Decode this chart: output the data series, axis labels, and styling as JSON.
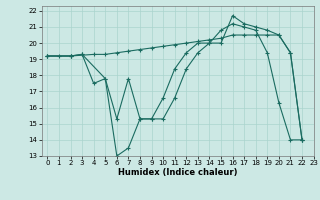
{
  "xlabel": "Humidex (Indice chaleur)",
  "background_color": "#cce8e4",
  "grid_color": "#aad4ce",
  "line_color": "#1a6b60",
  "xlim": [
    -0.5,
    23
  ],
  "ylim": [
    13,
    22.3
  ],
  "xticks": [
    0,
    1,
    2,
    3,
    4,
    5,
    6,
    7,
    8,
    9,
    10,
    11,
    12,
    13,
    14,
    15,
    16,
    17,
    18,
    19,
    20,
    21,
    22,
    23
  ],
  "yticks": [
    13,
    14,
    15,
    16,
    17,
    18,
    19,
    20,
    21,
    22
  ],
  "line1_x": [
    0,
    1,
    2,
    3,
    4,
    5,
    6,
    7,
    8,
    9,
    10,
    11,
    12,
    13,
    14,
    15,
    16,
    17,
    18,
    19,
    20,
    21,
    22
  ],
  "line1_y": [
    19.2,
    19.2,
    19.2,
    19.3,
    17.5,
    17.8,
    13.0,
    13.5,
    15.3,
    15.3,
    15.3,
    16.6,
    18.4,
    19.4,
    20.0,
    20.0,
    21.7,
    21.2,
    21.0,
    20.8,
    20.5,
    19.4,
    14.0
  ],
  "line2_x": [
    0,
    2,
    3,
    5,
    6,
    7,
    8,
    9,
    10,
    11,
    12,
    13,
    14,
    15,
    16,
    17,
    18,
    19,
    20,
    21,
    22
  ],
  "line2_y": [
    19.2,
    19.2,
    19.3,
    17.8,
    15.3,
    17.8,
    15.3,
    15.3,
    16.6,
    18.4,
    19.4,
    20.0,
    20.0,
    20.8,
    21.2,
    21.0,
    20.8,
    19.4,
    16.3,
    14.0,
    14.0
  ],
  "line3_x": [
    0,
    2,
    4,
    5,
    6,
    7,
    8,
    9,
    10,
    11,
    12,
    13,
    14,
    15,
    16,
    17,
    18,
    19,
    20,
    21,
    22
  ],
  "line3_y": [
    19.2,
    19.2,
    19.3,
    19.3,
    19.4,
    19.5,
    19.6,
    19.7,
    19.8,
    19.9,
    20.0,
    20.1,
    20.2,
    20.3,
    20.5,
    20.5,
    20.5,
    20.5,
    20.5,
    19.4,
    14.0
  ]
}
